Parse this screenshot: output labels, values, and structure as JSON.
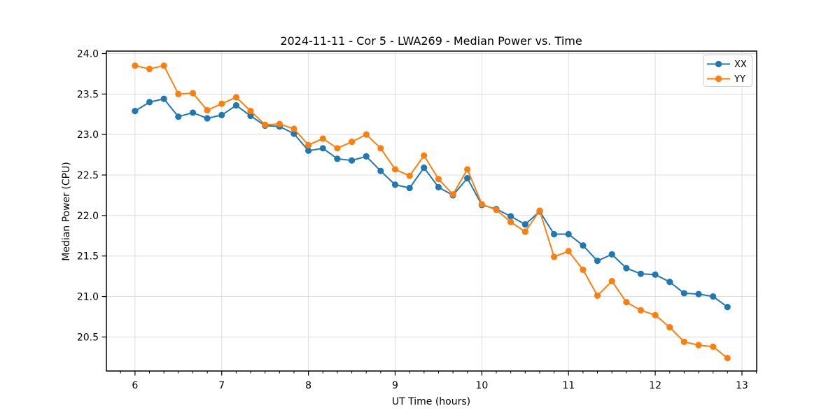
{
  "chart_data": {
    "type": "line",
    "title": "2024-11-11 - Cor 5 - LWA269 - Median Power vs. Time",
    "xlabel": "UT Time (hours)",
    "ylabel": "Median Power (CPU)",
    "xlim": [
      5.67,
      13.17
    ],
    "ylim": [
      20.08,
      24.03
    ],
    "x_ticks": [
      6,
      7,
      8,
      9,
      10,
      11,
      12,
      13
    ],
    "y_ticks": [
      20.5,
      21.0,
      21.5,
      22.0,
      22.5,
      23.0,
      23.5,
      24.0
    ],
    "x_minor_tick_step_hours": 0.16667,
    "grid": true,
    "grid_color": "#dcdcdc",
    "legend_position": "top-right",
    "marker": "circle",
    "x": [
      6.0,
      6.167,
      6.333,
      6.5,
      6.667,
      6.833,
      7.0,
      7.167,
      7.333,
      7.5,
      7.667,
      7.833,
      8.0,
      8.167,
      8.333,
      8.5,
      8.667,
      8.833,
      9.0,
      9.167,
      9.333,
      9.5,
      9.667,
      9.833,
      10.0,
      10.167,
      10.333,
      10.5,
      10.667,
      10.833,
      11.0,
      11.167,
      11.333,
      11.5,
      11.667,
      11.833,
      12.0,
      12.167,
      12.333,
      12.5,
      12.667,
      12.833
    ],
    "series": [
      {
        "name": "XX",
        "color": "#1f77b4",
        "values": [
          23.29,
          23.4,
          23.44,
          23.22,
          23.27,
          23.2,
          23.24,
          23.36,
          23.23,
          23.11,
          23.1,
          23.01,
          22.8,
          22.83,
          22.7,
          22.68,
          22.73,
          22.55,
          22.38,
          22.34,
          22.59,
          22.35,
          22.25,
          22.46,
          22.13,
          22.08,
          21.99,
          21.89,
          22.05,
          21.77,
          21.77,
          21.63,
          21.44,
          21.52,
          21.35,
          21.28,
          21.27,
          21.18,
          21.04,
          21.03,
          21.0,
          20.87
        ]
      },
      {
        "name": "YY",
        "color": "#ff7f0e",
        "values": [
          23.85,
          23.81,
          23.85,
          23.5,
          23.51,
          23.3,
          23.38,
          23.46,
          23.29,
          23.12,
          23.13,
          23.07,
          22.87,
          22.95,
          22.83,
          22.91,
          23.0,
          22.83,
          22.57,
          22.49,
          22.74,
          22.45,
          22.26,
          22.57,
          22.14,
          22.07,
          21.92,
          21.8,
          22.06,
          21.49,
          21.56,
          21.33,
          21.01,
          21.19,
          20.93,
          20.83,
          20.77,
          20.62,
          20.44,
          20.4,
          20.38,
          20.24
        ]
      }
    ]
  }
}
